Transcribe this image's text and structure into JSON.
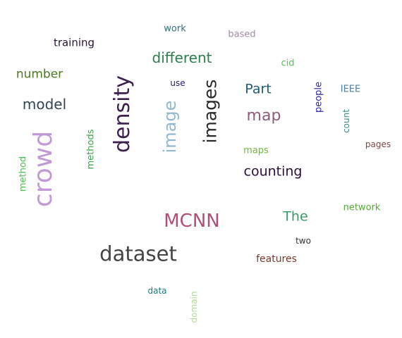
{
  "words": [
    {
      "text": "work",
      "color": "#3a6f7a"
    },
    {
      "text": "based",
      "color": "#a58aa6"
    },
    {
      "text": "training",
      "color": "#2a1733"
    },
    {
      "text": "different",
      "color": "#2e7d4f"
    },
    {
      "text": "cid",
      "color": "#53c25a"
    },
    {
      "text": "number",
      "color": "#4d7a1f"
    },
    {
      "text": "use",
      "color": "#2a1a7a"
    },
    {
      "text": "Part",
      "color": "#1f5d70"
    },
    {
      "text": "IEEE",
      "color": "#4f7fa6"
    },
    {
      "text": "people",
      "color": "#2a2aa6"
    },
    {
      "text": "model",
      "color": "#334455"
    },
    {
      "text": "density",
      "color": "#3b1f4d"
    },
    {
      "text": "image",
      "color": "#94b8cf"
    },
    {
      "text": "images",
      "color": "#2a2a2a"
    },
    {
      "text": "map",
      "color": "#8a5f7e"
    },
    {
      "text": "count",
      "color": "#3f8f8a"
    },
    {
      "text": "crowd",
      "color": "#c09ad8"
    },
    {
      "text": "methods",
      "color": "#3aa84a"
    },
    {
      "text": "pages",
      "color": "#7a4a4a"
    },
    {
      "text": "maps",
      "color": "#6fba3a"
    },
    {
      "text": "method",
      "color": "#4cc24c"
    },
    {
      "text": "counting",
      "color": "#2a0f3a"
    },
    {
      "text": "network",
      "color": "#5aa83a"
    },
    {
      "text": "The",
      "color": "#3a9a6a"
    },
    {
      "text": "MCNN",
      "color": "#b0507a"
    },
    {
      "text": "two",
      "color": "#333333"
    },
    {
      "text": "dataset",
      "color": "#444444"
    },
    {
      "text": "features",
      "color": "#7a3a2a"
    },
    {
      "text": "data",
      "color": "#1f7a7a"
    },
    {
      "text": "domain",
      "color": "#b5d99a"
    }
  ]
}
